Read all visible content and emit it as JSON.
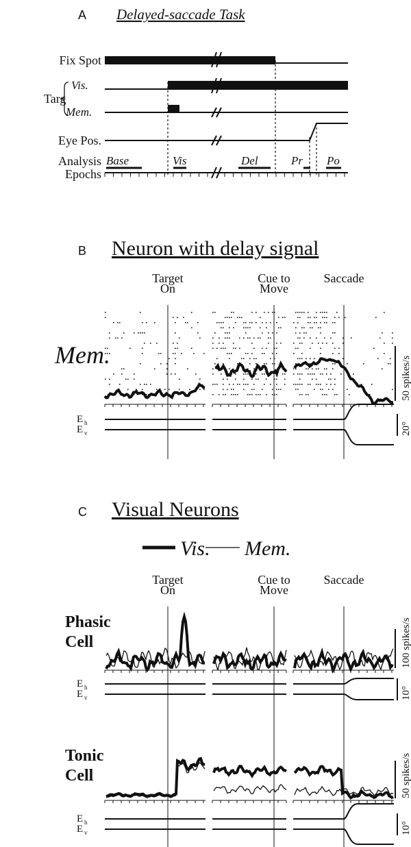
{
  "panel_a": {
    "letter": "A",
    "title": "Delayed-saccade Task",
    "rows": [
      "Fix Spot",
      "Targ",
      "Vis.",
      "Mem.",
      "Eye Pos.",
      "Analysis",
      "Epochs"
    ],
    "epochs": [
      "Base",
      "Vis",
      "Del",
      "Pr",
      "Po"
    ]
  },
  "panel_b": {
    "letter": "B",
    "title": "Neuron with delay signal",
    "alignments": [
      [
        "Target",
        "On"
      ],
      [
        "Cue to",
        "Move"
      ],
      [
        "Saccade"
      ]
    ],
    "condition": "Mem.",
    "rate_scale": "50 spikes/s",
    "eye_labels": [
      {
        "main": "E",
        "sub": "h"
      },
      {
        "main": "E",
        "sub": "v"
      }
    ],
    "eye_scale": "20°"
  },
  "panel_c": {
    "letter": "C",
    "title": "Visual Neurons",
    "legend": [
      "Vis.",
      "Mem."
    ],
    "alignments": [
      [
        "Target",
        "On"
      ],
      [
        "Cue to",
        "Move"
      ],
      [
        "Saccade"
      ]
    ],
    "cells": [
      {
        "name": [
          "Phasic",
          "Cell"
        ],
        "rate_scale": "100 spikes/s",
        "eye_labels": [
          {
            "main": "E",
            "sub": "h"
          },
          {
            "main": "E",
            "sub": "v"
          }
        ],
        "eye_scale": "10°"
      },
      {
        "name": [
          "Tonic",
          "Cell"
        ],
        "rate_scale": "50 spikes/s",
        "eye_labels": [
          {
            "main": "E",
            "sub": "h"
          },
          {
            "main": "E",
            "sub": "v"
          }
        ],
        "eye_scale": "10°"
      }
    ]
  }
}
